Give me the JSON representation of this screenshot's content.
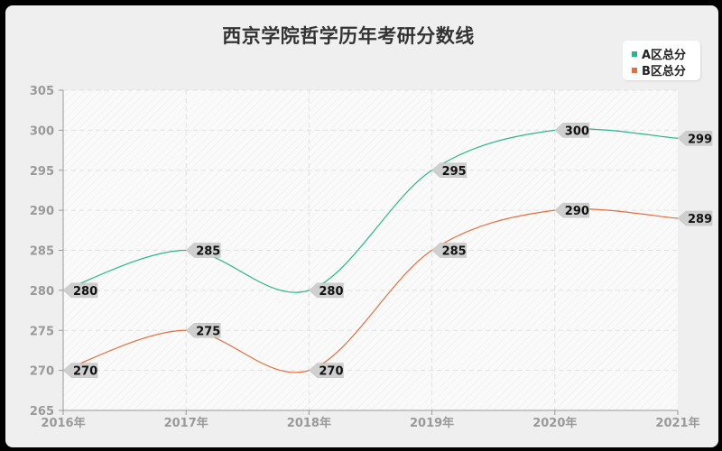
{
  "chart_data": {
    "type": "line",
    "title": "西京学院哲学历年考研分数线",
    "categories": [
      "2016年",
      "2017年",
      "2018年",
      "2019年",
      "2020年",
      "2021年"
    ],
    "series": [
      {
        "name": "A区总分",
        "color": "#2ab58a",
        "values": [
          280,
          285,
          280,
          295,
          300,
          299
        ]
      },
      {
        "name": "B区总分",
        "color": "#e0703f",
        "values": [
          270,
          275,
          270,
          285,
          290,
          289
        ]
      }
    ],
    "xlabel": "",
    "ylabel": "",
    "ylim": [
      265,
      305
    ],
    "yticks": [
      265,
      270,
      275,
      280,
      285,
      290,
      295,
      300,
      305
    ],
    "grid": true,
    "legend_position": "top-right",
    "smooth": true
  }
}
